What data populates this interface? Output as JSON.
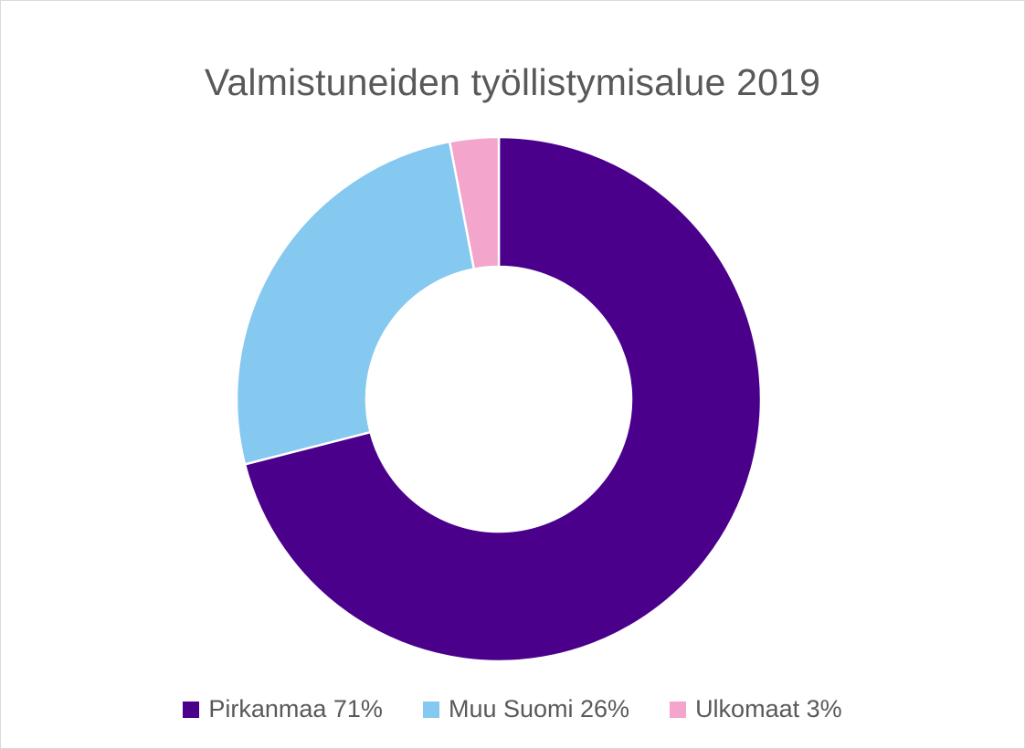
{
  "chart_data": {
    "type": "pie",
    "title": "Valmistuneiden työllistymisalue 2019",
    "donut": true,
    "categories": [
      "Pirkanmaa",
      "Muu Suomi",
      "Ulkomaat"
    ],
    "values": [
      71,
      26,
      3
    ],
    "value_unit": "%",
    "colors": [
      "#4b008c",
      "#85c8f0",
      "#f3a5cb"
    ],
    "legend_labels": [
      "Pirkanmaa 71%",
      "Muu Suomi 26%",
      "Ulkomaat 3%"
    ],
    "legend_position": "bottom",
    "slice_border_color": "#ffffff",
    "start_angle": "top",
    "direction": "clockwise"
  }
}
